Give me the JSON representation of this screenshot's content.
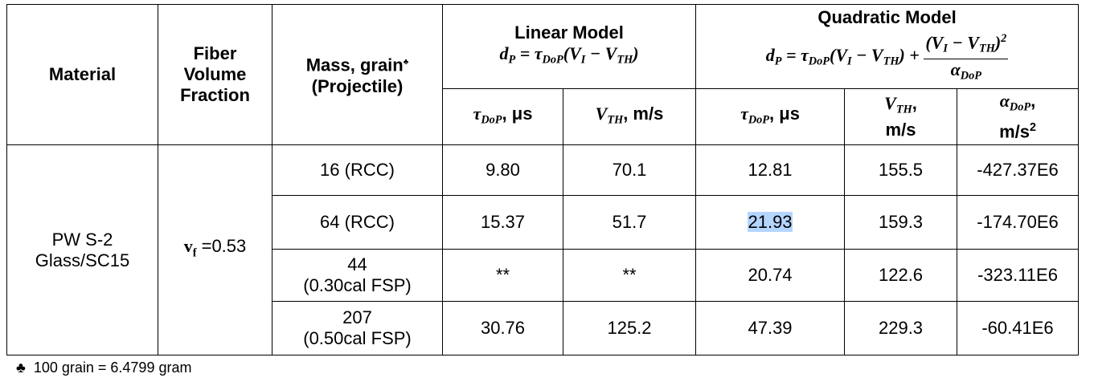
{
  "table": {
    "header": {
      "material": "Material",
      "fiber": [
        "Fiber",
        "Volume",
        "Fraction"
      ],
      "mass": "Mass, grain",
      "mass_marker": "♣",
      "projectile": "(Projectile)",
      "linear": {
        "title": "Linear Model",
        "formula": [
          "d",
          "P",
          " = ",
          "τ",
          "DoP",
          "(",
          "V",
          "I",
          " − ",
          "V",
          "TH",
          ")"
        ]
      },
      "quadratic": {
        "title": "Quadratic Model",
        "formula": [
          "d",
          "P",
          " = ",
          "τ",
          "DoP",
          "(",
          "V",
          "I",
          " − ",
          "V",
          "TH",
          ")",
          " + ",
          "(",
          "V",
          "I",
          " − ",
          "V",
          "TH",
          ")",
          "2",
          "α",
          "DoP"
        ]
      },
      "linear_tau": [
        "τ",
        "DoP",
        ", μs"
      ],
      "linear_vth": [
        "V",
        "TH",
        ", m/s"
      ],
      "quad_tau": [
        "τ",
        "DoP",
        ", μs"
      ],
      "quad_vth": [
        "V",
        "TH",
        ",",
        "m/s"
      ],
      "quad_alpha": [
        "α",
        "DoP",
        ",",
        "m/s",
        "2"
      ]
    },
    "material": [
      "PW S-2",
      "Glass/SC15"
    ],
    "fiber": [
      "v",
      "f",
      " =0.53"
    ],
    "rows": [
      [
        [
          "16 (RCC)"
        ],
        "9.80",
        "70.1",
        "12.81",
        "155.5",
        "-427.37E6"
      ],
      [
        [
          "64 (RCC)"
        ],
        "15.37",
        "51.7",
        "21.93",
        "159.3",
        "-174.70E6"
      ],
      [
        [
          "44",
          "(0.30cal FSP)"
        ],
        "**",
        "**",
        "20.74",
        "122.6",
        "-323.11E6"
      ],
      [
        [
          "207",
          "(0.50cal FSP)"
        ],
        "30.76",
        "125.2",
        "47.39",
        "229.3",
        "-60.41E6"
      ]
    ]
  },
  "footnote": {
    "symbol": "♣",
    "text": "100 grain = 6.4799 gram"
  }
}
